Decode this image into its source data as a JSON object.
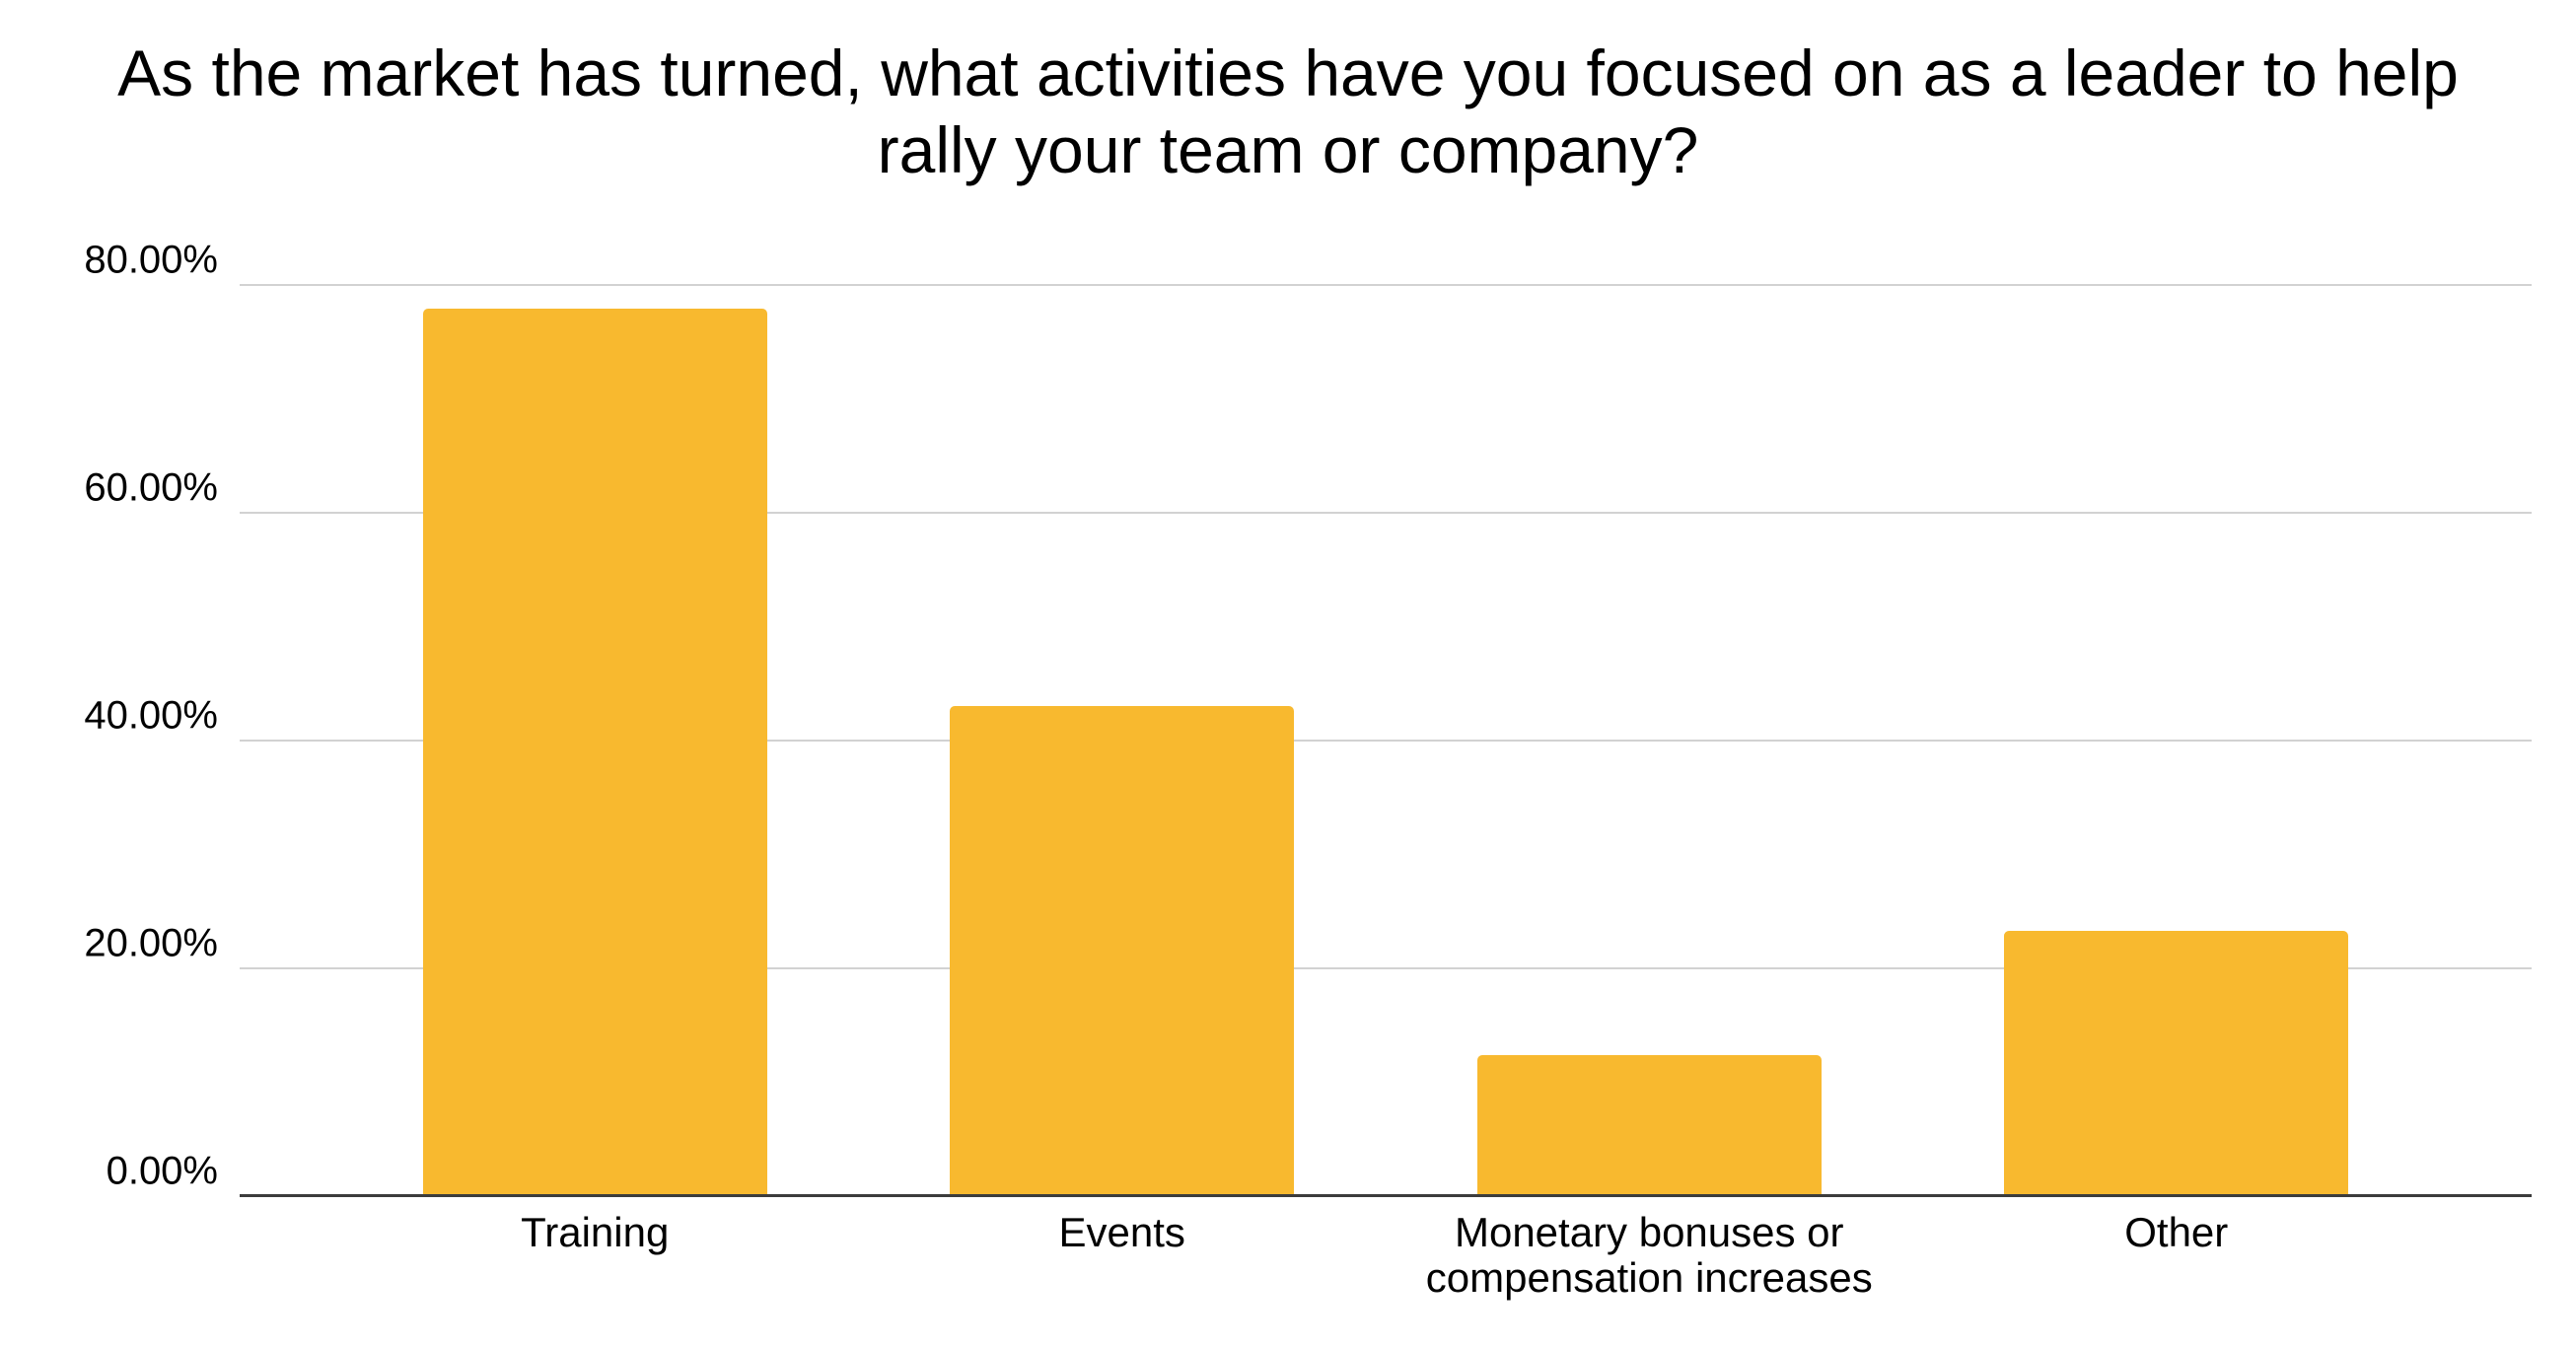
{
  "page": {
    "background": "#ffffff"
  },
  "chart_data": {
    "type": "bar",
    "title": "As the market has turned, what activities have you focused on as a leader to help rally your team or company?",
    "categories": [
      "Training",
      "Events",
      "Monetary bonuses or compensation increases",
      "Other"
    ],
    "values": [
      77.9,
      43.0,
      12.4,
      23.3
    ],
    "unit": "%",
    "xlabel": "",
    "ylabel": "",
    "ylim": [
      0,
      80
    ],
    "yticks": [
      {
        "value": 0,
        "label": "0.00%"
      },
      {
        "value": 20,
        "label": "20.00%"
      },
      {
        "value": 40,
        "label": "40.00%"
      },
      {
        "value": 60,
        "label": "60.00%"
      },
      {
        "value": 80,
        "label": "80.00%"
      }
    ],
    "grid": true,
    "legend": "none",
    "colors": {
      "bar": "#F8B92F",
      "gridline": "#D2D2D2",
      "axis_line": "#3C3C3C",
      "text": "#000000"
    },
    "layout": {
      "bar_centers_pct": [
        15.5,
        38.5,
        61.5,
        84.5
      ],
      "bar_width_pct": 15
    }
  }
}
